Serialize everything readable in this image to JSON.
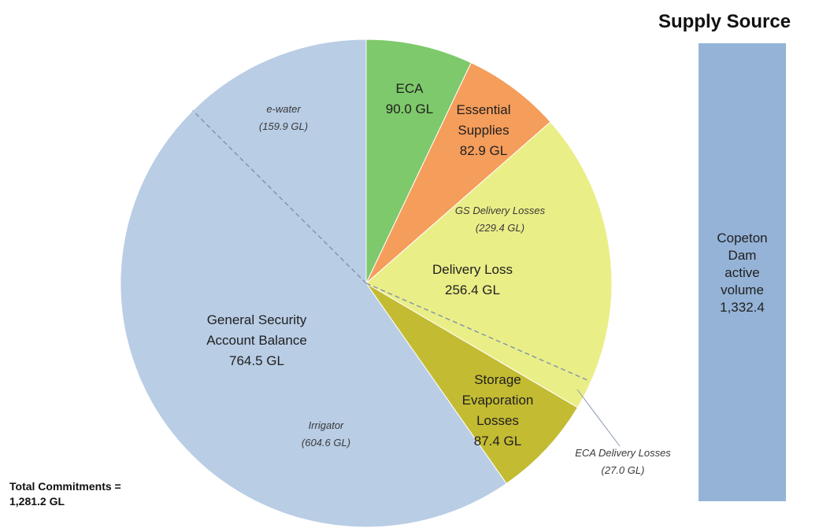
{
  "chart_data": [
    {
      "type": "pie",
      "unit": "GL",
      "slices": [
        {
          "key": "eca",
          "lines": [
            "ECA",
            "90.0 GL"
          ],
          "value": 90.0,
          "color": "#7ec96b"
        },
        {
          "key": "essential",
          "lines": [
            "Essential",
            "Supplies",
            "82.9 GL"
          ],
          "value": 82.9,
          "color": "#f59d5b"
        },
        {
          "key": "delivery",
          "lines": [
            "Delivery Loss",
            "256.4 GL"
          ],
          "value": 256.4,
          "color": "#eaee87"
        },
        {
          "key": "storage",
          "lines": [
            "Storage",
            "Evaporation",
            "Losses",
            "87.4 GL"
          ],
          "value": 87.4,
          "color": "#c3bb32"
        },
        {
          "key": "general",
          "lines": [
            "General Security",
            "Account Balance",
            "764.5 GL"
          ],
          "value": 764.5,
          "color": "#b9cde5"
        }
      ],
      "sub_components": [
        {
          "key": "gs_delivery",
          "parent": "delivery",
          "lines": [
            "GS Delivery Losses",
            "(229.4 GL)"
          ],
          "value": 229.4
        },
        {
          "key": "eca_delivery",
          "parent": "delivery",
          "lines": [
            "ECA Delivery Losses",
            "(27.0 GL)"
          ],
          "value": 27.0
        },
        {
          "key": "ewater",
          "parent": "general",
          "lines": [
            "e-water",
            "(159.9 GL)"
          ],
          "value": 159.9
        },
        {
          "key": "irrigator",
          "parent": "general",
          "lines": [
            "Irrigator",
            "(604.6 GL)"
          ],
          "value": 604.6
        }
      ],
      "total_label": [
        "Total Commitments =",
        "1,281.2 GL"
      ]
    },
    {
      "type": "bar",
      "title": "Supply Source",
      "bar_label": [
        "Copeton",
        "Dam",
        "active",
        "volume",
        "1,332.4"
      ],
      "value": 1332.4,
      "color": "#95b3d7"
    }
  ]
}
